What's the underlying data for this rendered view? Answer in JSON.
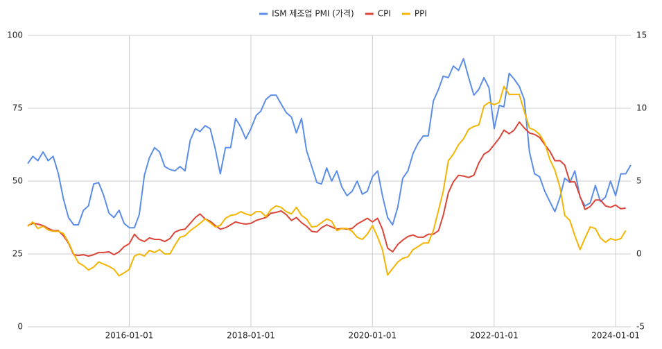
{
  "chart_data": {
    "type": "line",
    "x": [
      "2014-05-01",
      "2014-06-01",
      "2014-07-01",
      "2014-08-01",
      "2014-09-01",
      "2014-10-01",
      "2014-11-01",
      "2014-12-01",
      "2015-01-01",
      "2015-02-01",
      "2015-03-01",
      "2015-04-01",
      "2015-05-01",
      "2015-06-01",
      "2015-07-01",
      "2015-08-01",
      "2015-09-01",
      "2015-10-01",
      "2015-11-01",
      "2015-12-01",
      "2016-01-01",
      "2016-02-01",
      "2016-03-01",
      "2016-04-01",
      "2016-05-01",
      "2016-06-01",
      "2016-07-01",
      "2016-08-01",
      "2016-09-01",
      "2016-10-01",
      "2016-11-01",
      "2016-12-01",
      "2017-01-01",
      "2017-02-01",
      "2017-03-01",
      "2017-04-01",
      "2017-05-01",
      "2017-06-01",
      "2017-07-01",
      "2017-08-01",
      "2017-09-01",
      "2017-10-01",
      "2017-11-01",
      "2017-12-01",
      "2018-01-01",
      "2018-02-01",
      "2018-03-01",
      "2018-04-01",
      "2018-05-01",
      "2018-06-01",
      "2018-07-01",
      "2018-08-01",
      "2018-09-01",
      "2018-10-01",
      "2018-11-01",
      "2018-12-01",
      "2019-01-01",
      "2019-02-01",
      "2019-03-01",
      "2019-04-01",
      "2019-05-01",
      "2019-06-01",
      "2019-07-01",
      "2019-08-01",
      "2019-09-01",
      "2019-10-01",
      "2019-11-01",
      "2019-12-01",
      "2020-01-01",
      "2020-02-01",
      "2020-03-01",
      "2020-04-01",
      "2020-05-01",
      "2020-06-01",
      "2020-07-01",
      "2020-08-01",
      "2020-09-01",
      "2020-10-01",
      "2020-11-01",
      "2020-12-01",
      "2021-01-01",
      "2021-02-01",
      "2021-03-01",
      "2021-04-01",
      "2021-05-01",
      "2021-06-01",
      "2021-07-01",
      "2021-08-01",
      "2021-09-01",
      "2021-10-01",
      "2021-11-01",
      "2021-12-01",
      "2022-01-01",
      "2022-02-01",
      "2022-03-01",
      "2022-04-01",
      "2022-05-01",
      "2022-06-01",
      "2022-07-01",
      "2022-08-01",
      "2022-09-01",
      "2022-10-01",
      "2022-11-01",
      "2022-12-01",
      "2023-01-01",
      "2023-02-01",
      "2023-03-01",
      "2023-04-01",
      "2023-05-01",
      "2023-06-01",
      "2023-07-01",
      "2023-08-01",
      "2023-09-01",
      "2023-10-01",
      "2023-11-01",
      "2023-12-01",
      "2024-01-01",
      "2024-02-01",
      "2024-03-01",
      "2024-04-01"
    ],
    "series": [
      {
        "name": "ISM 제조업 PMI (가격)",
        "color": "#5b8de8",
        "axis": "y",
        "values": [
          56,
          58.5,
          57,
          60,
          57,
          58.5,
          52.5,
          44,
          37.5,
          35,
          35,
          40,
          41.5,
          49,
          49.5,
          45,
          39,
          37.5,
          40,
          35.5,
          34,
          34,
          38.5,
          52,
          58,
          61.5,
          60,
          55,
          54,
          53.5,
          55,
          53.5,
          64,
          68,
          67,
          69,
          68,
          61,
          52.5,
          61.5,
          61.5,
          71.5,
          68.5,
          64.5,
          68,
          72.5,
          74,
          78,
          79.5,
          79.5,
          76.5,
          73.5,
          72,
          66.5,
          71.5,
          60.5,
          55,
          49.5,
          49,
          54.5,
          50,
          53.5,
          48,
          45,
          46.5,
          50,
          45.5,
          46.5,
          51.5,
          53.5,
          45,
          37.5,
          35,
          41,
          51,
          53.5,
          59.5,
          63,
          65.5,
          65.5,
          77.5,
          81.5,
          86,
          85.5,
          89.5,
          88,
          92,
          85.5,
          79.5,
          81.5,
          85.5,
          82,
          68,
          76,
          75.5,
          87,
          85,
          82.5,
          78,
          60,
          52.5,
          51.5,
          46.5,
          43,
          39.5,
          44.5,
          51,
          49.5,
          53.5,
          44.5,
          41.5,
          42.5,
          48.5,
          43,
          44.5,
          50,
          45,
          52.5,
          52.5,
          55.5
        ]
      },
      {
        "name": "CPI",
        "color": "#db4437",
        "axis": "y2",
        "values": [
          1.95,
          2.1,
          2.05,
          1.95,
          1.75,
          1.6,
          1.6,
          1.25,
          0.75,
          -0.05,
          -0.1,
          -0.05,
          -0.15,
          -0.05,
          0.1,
          0.1,
          0.15,
          -0.05,
          0.15,
          0.5,
          0.7,
          1.35,
          1.0,
          0.85,
          1.1,
          1.0,
          1.0,
          0.85,
          1.05,
          1.5,
          1.65,
          1.7,
          2.1,
          2.5,
          2.75,
          2.4,
          2.25,
          1.95,
          1.7,
          1.8,
          2.0,
          2.2,
          2.1,
          2.05,
          2.1,
          2.3,
          2.4,
          2.5,
          2.8,
          2.85,
          2.95,
          2.7,
          2.3,
          2.5,
          2.15,
          1.9,
          1.55,
          1.5,
          1.8,
          2.0,
          1.85,
          1.7,
          1.75,
          1.7,
          1.75,
          2.05,
          2.25,
          2.45,
          2.2,
          2.45,
          1.7,
          0.4,
          0.15,
          0.65,
          0.95,
          1.2,
          1.3,
          1.15,
          1.15,
          1.35,
          1.35,
          1.6,
          2.65,
          4.2,
          4.95,
          5.4,
          5.35,
          5.25,
          5.4,
          6.25,
          6.85,
          7.05,
          7.5,
          7.95,
          8.5,
          8.25,
          8.5,
          9.05,
          8.65,
          8.3,
          8.2,
          8.0,
          7.5,
          7.05,
          6.4,
          6.4,
          6.1,
          4.95,
          4.95,
          3.95,
          3.05,
          3.25,
          3.7,
          3.7,
          3.3,
          3.2,
          3.35,
          3.1,
          3.15,
          null
        ]
      },
      {
        "name": "PPI",
        "color": "#f4b400",
        "axis": "y2",
        "values": [
          1.9,
          2.2,
          1.75,
          1.9,
          1.65,
          1.55,
          1.55,
          1.4,
          0.8,
          0,
          -0.6,
          -0.8,
          -1.1,
          -0.9,
          -0.55,
          -0.7,
          -0.85,
          -1.05,
          -1.5,
          -1.3,
          -1.05,
          -0.15,
          0,
          -0.15,
          0.25,
          0.1,
          0.3,
          0,
          0,
          0.6,
          1.15,
          1.25,
          1.6,
          1.85,
          2.1,
          2.4,
          2.15,
          1.85,
          1.95,
          2.45,
          2.65,
          2.7,
          2.9,
          2.75,
          2.65,
          2.9,
          2.9,
          2.55,
          3.05,
          3.3,
          3.2,
          2.9,
          2.75,
          3.2,
          2.65,
          2.4,
          1.85,
          1.9,
          2.15,
          2.4,
          2.25,
          1.6,
          1.75,
          1.75,
          1.55,
          1.15,
          1.0,
          1.35,
          1.95,
          1.15,
          0.3,
          -1.45,
          -1.0,
          -0.55,
          -0.3,
          -0.2,
          0.3,
          0.5,
          0.75,
          0.75,
          1.6,
          3.0,
          4.3,
          6.4,
          6.85,
          7.5,
          7.9,
          8.55,
          8.75,
          8.85,
          10.15,
          10.4,
          10.25,
          10.4,
          11.5,
          10.95,
          10.95,
          10.95,
          9.8,
          8.65,
          8.5,
          8.2,
          7.6,
          6.5,
          5.75,
          4.55,
          2.65,
          2.3,
          1.25,
          0.3,
          1.1,
          1.85,
          1.75,
          1.1,
          0.8,
          1.05,
          0.95,
          1.05,
          1.6,
          null
        ]
      }
    ],
    "xlim": [
      "2014-05-01",
      "2024-04-01"
    ],
    "xticks": [
      "2016-01-01",
      "2018-01-01",
      "2020-01-01",
      "2022-01-01",
      "2024-01-01"
    ],
    "ylim": [
      0,
      100
    ],
    "yticks": [
      0,
      25,
      50,
      75,
      100
    ],
    "y2lim": [
      -5,
      15
    ],
    "y2ticks": [
      -5,
      0,
      5,
      10,
      15
    ],
    "grid": true,
    "legend": "top"
  }
}
